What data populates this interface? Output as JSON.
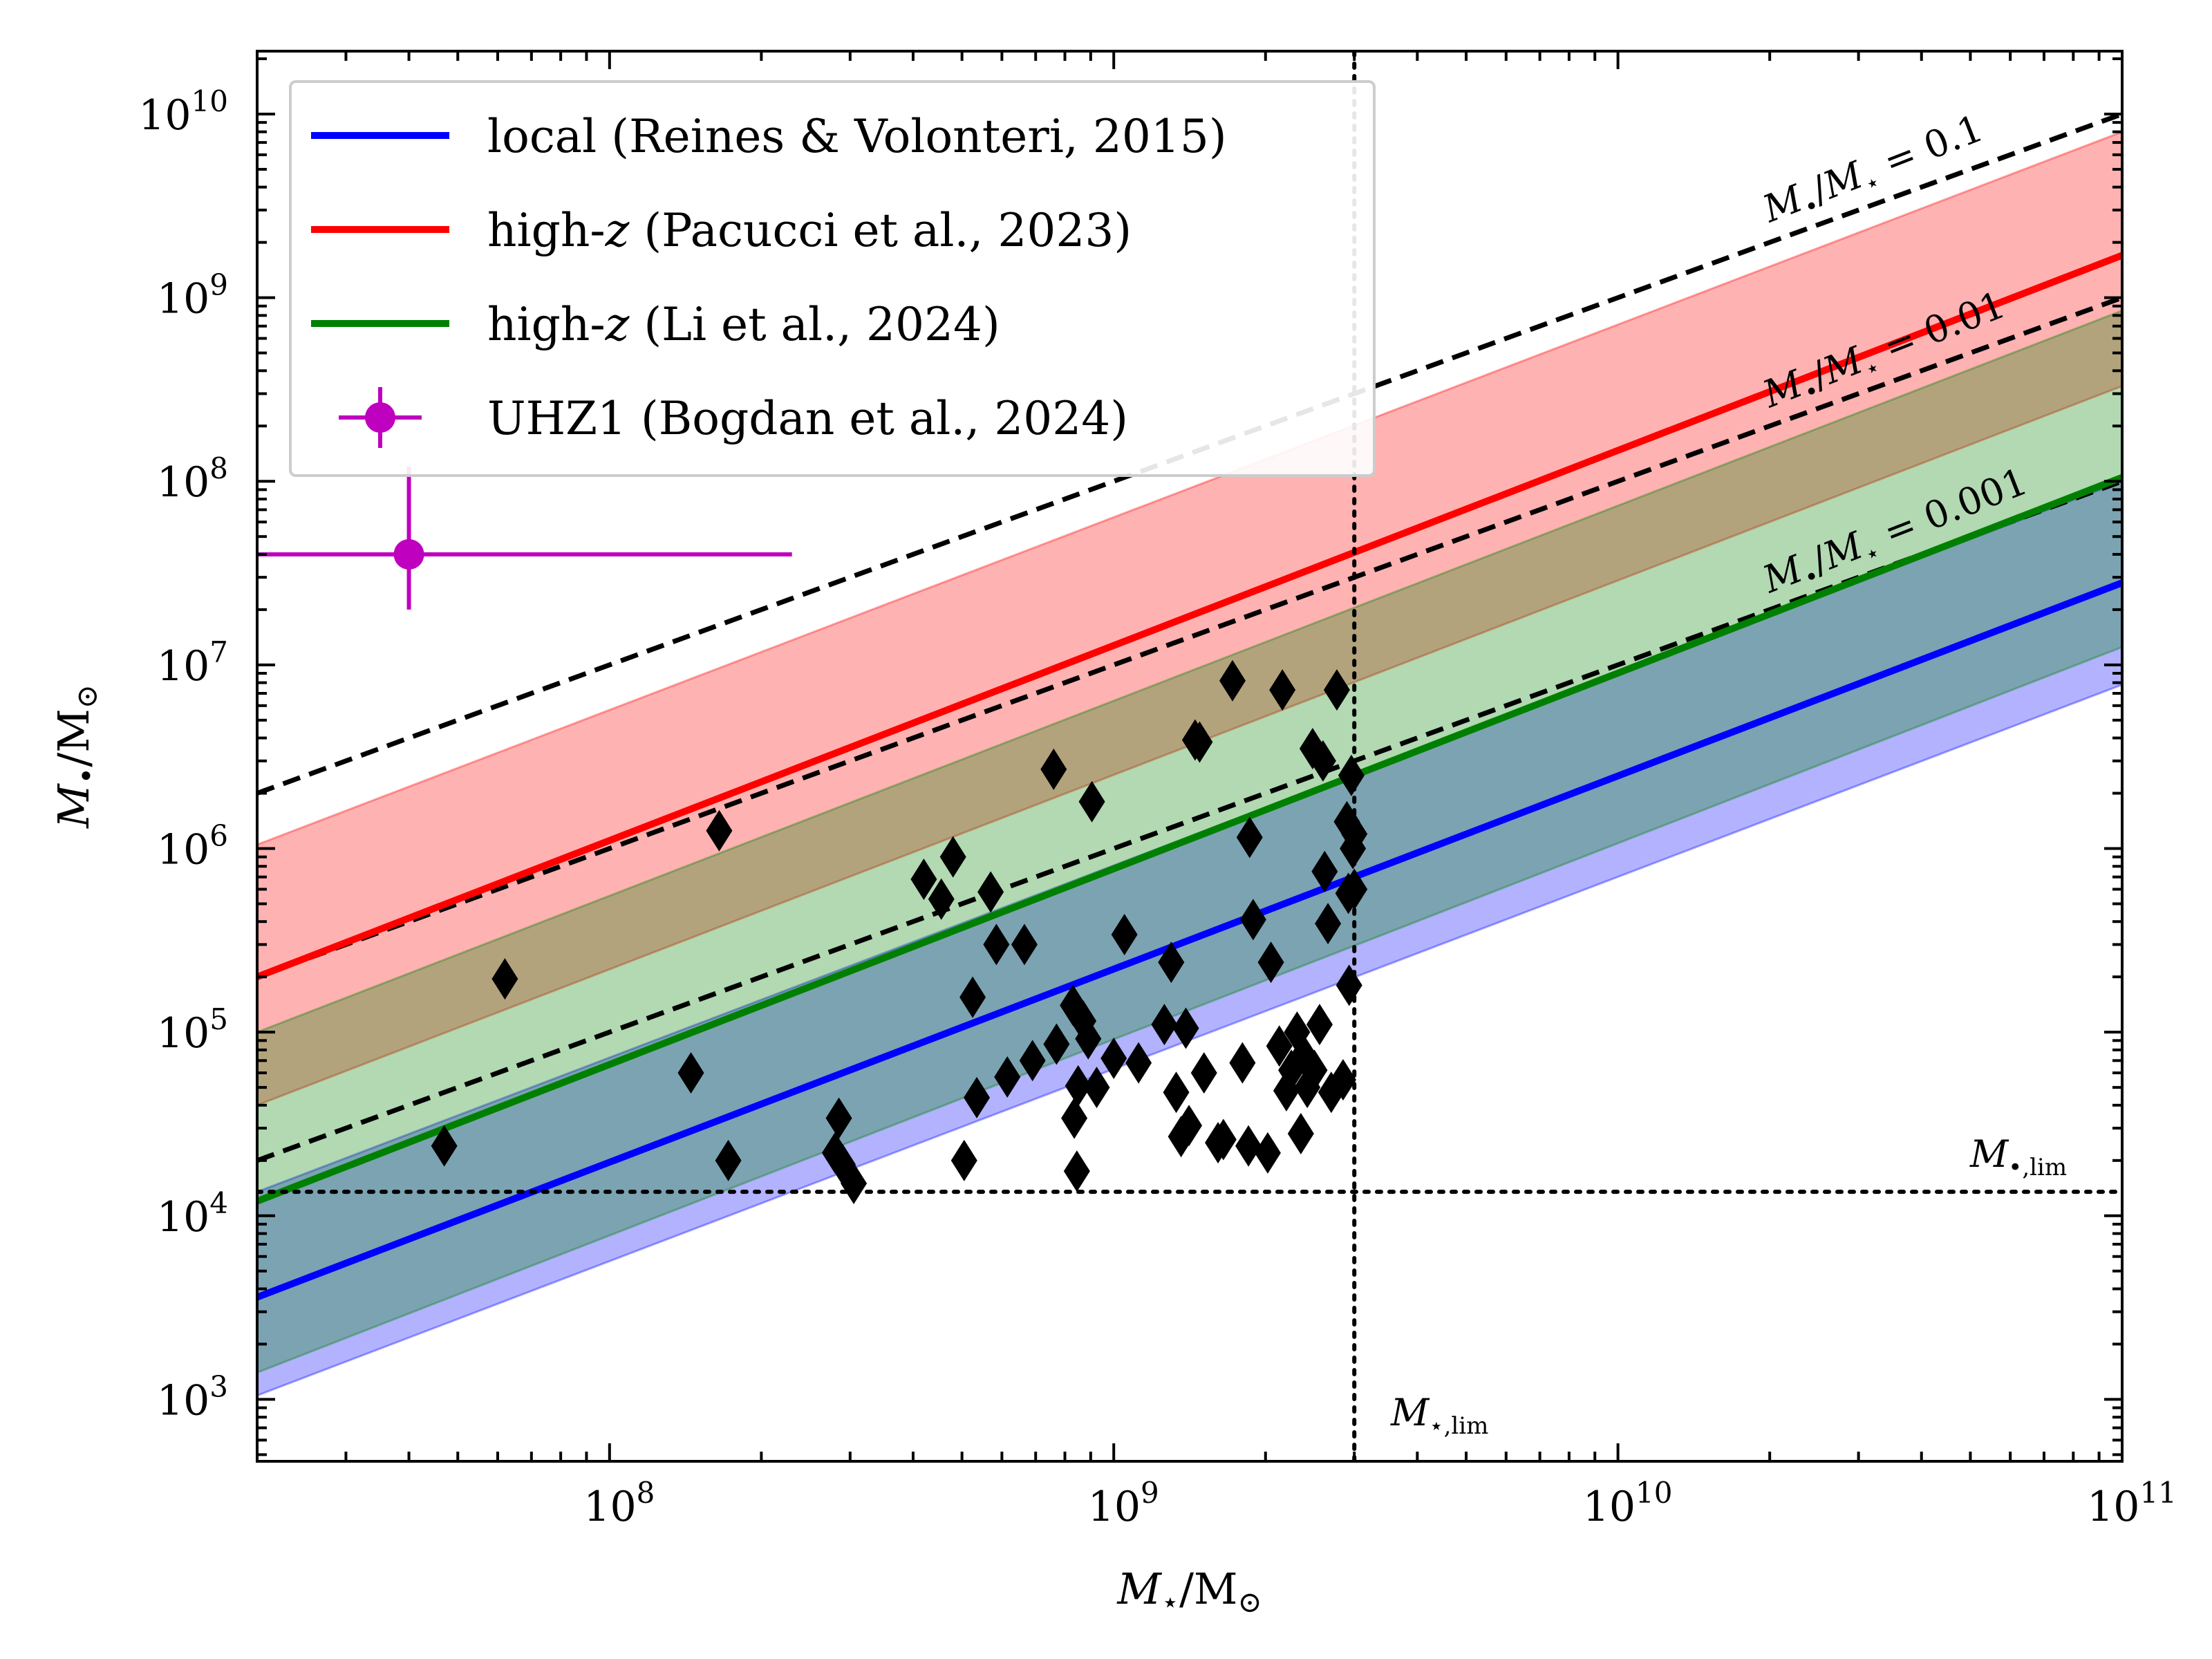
{
  "chart_data": {
    "type": "scatter",
    "xlabel": "M⋆/M⊙",
    "ylabel": "M•/M⊙",
    "xscale": "log",
    "yscale": "log",
    "xlim": [
      20000000,
      100000000000
    ],
    "ylim": [
      460,
      22000000000
    ],
    "x_ticks": [
      {
        "value": 100000000,
        "base": "10",
        "exp": "8"
      },
      {
        "value": 1000000000,
        "base": "10",
        "exp": "9"
      },
      {
        "value": 10000000000,
        "base": "10",
        "exp": "10"
      },
      {
        "value": 100000000000,
        "base": "10",
        "exp": "11"
      }
    ],
    "y_ticks": [
      {
        "value": 1000,
        "base": "10",
        "exp": "3"
      },
      {
        "value": 10000,
        "base": "10",
        "exp": "4"
      },
      {
        "value": 100000,
        "base": "10",
        "exp": "5"
      },
      {
        "value": 1000000,
        "base": "10",
        "exp": "6"
      },
      {
        "value": 10000000,
        "base": "10",
        "exp": "7"
      },
      {
        "value": 100000000,
        "base": "10",
        "exp": "8"
      },
      {
        "value": 1000000000,
        "base": "10",
        "exp": "9"
      },
      {
        "value": 10000000000,
        "base": "10",
        "exp": "10"
      }
    ],
    "relations": [
      {
        "name": "local (Reines & Volonteri, 2015)",
        "color": "#0000ff",
        "band_color": "#0000ff",
        "band_opacity": 0.3,
        "line": [
          [
            20000000,
            3600
          ],
          [
            100000000000,
            28000000
          ]
        ],
        "band_lower": [
          [
            20000000,
            1050
          ],
          [
            100000000000,
            7800000
          ]
        ],
        "band_upper": [
          [
            20000000,
            13500
          ],
          [
            100000000000,
            100000000
          ]
        ]
      },
      {
        "name": "high-z (Pacucci et al., 2023)",
        "color": "#ff0000",
        "band_color": "#ff0000",
        "band_opacity": 0.3,
        "line": [
          [
            20000000,
            200000
          ],
          [
            100000000000,
            1700000000
          ]
        ],
        "band_lower": [
          [
            20000000,
            40000
          ],
          [
            100000000000,
            330000000
          ]
        ],
        "band_upper": [
          [
            20000000,
            1050000
          ],
          [
            100000000000,
            8000000000
          ]
        ]
      },
      {
        "name": "high-z (Li et al., 2024)",
        "color": "#008000",
        "band_color": "#008000",
        "band_opacity": 0.3,
        "line": [
          [
            20000000,
            12000
          ],
          [
            100000000000,
            105000000
          ]
        ],
        "band_lower": [
          [
            20000000,
            1400
          ],
          [
            100000000000,
            12500000
          ]
        ],
        "band_upper": [
          [
            20000000,
            100000
          ],
          [
            100000000000,
            850000000
          ]
        ]
      }
    ],
    "ratio_lines": [
      {
        "ratio": 0.1,
        "label": "M•/M⋆ = 0.1"
      },
      {
        "ratio": 0.01,
        "label": "M•/M⋆ = 0.01"
      },
      {
        "ratio": 0.001,
        "label": "M•/M⋆ = 0.001"
      }
    ],
    "limits": {
      "mstar_lim": 3000000000,
      "mstar_lim_label": "M⋆,lim",
      "mbh_lim": 13500,
      "mbh_lim_label": "M•,lim"
    },
    "uhz1": {
      "name": "UHZ1 (Bogdan et al., 2024)",
      "color": "#bf00bf",
      "x": 40000000,
      "y": 40000000,
      "x_err": [
        20000000,
        230000000
      ],
      "y_err": [
        20000000,
        120000000
      ]
    },
    "points_label": "black diamonds",
    "points": [
      [
        47000000,
        24000
      ],
      [
        62000000,
        195000
      ],
      [
        145000000,
        60000
      ],
      [
        165000000,
        1250000
      ],
      [
        172000000,
        20000
      ],
      [
        280000000,
        22000
      ],
      [
        285000000,
        34000
      ],
      [
        290000000,
        19000
      ],
      [
        305000000,
        15000
      ],
      [
        420000000,
        680000
      ],
      [
        455000000,
        530000
      ],
      [
        480000000,
        900000
      ],
      [
        505000000,
        20000
      ],
      [
        525000000,
        155000
      ],
      [
        535000000,
        44000
      ],
      [
        570000000,
        580000
      ],
      [
        585000000,
        300000
      ],
      [
        615000000,
        57000
      ],
      [
        665000000,
        300000
      ],
      [
        690000000,
        70000
      ],
      [
        760000000,
        2700000
      ],
      [
        770000000,
        86000
      ],
      [
        830000000,
        140000
      ],
      [
        835000000,
        34000
      ],
      [
        845000000,
        17500
      ],
      [
        850000000,
        51000
      ],
      [
        870000000,
        115000
      ],
      [
        890000000,
        92000
      ],
      [
        905000000,
        1800000
      ],
      [
        925000000,
        50000
      ],
      [
        1000000000,
        72000
      ],
      [
        1050000000,
        340000
      ],
      [
        1120000000,
        68000
      ],
      [
        1260000000,
        110000
      ],
      [
        1300000000,
        240000
      ],
      [
        1330000000,
        47000
      ],
      [
        1360000000,
        27000
      ],
      [
        1390000000,
        105000
      ],
      [
        1410000000,
        31000
      ],
      [
        1450000000,
        3900000
      ],
      [
        1480000000,
        3800000
      ],
      [
        1510000000,
        60000
      ],
      [
        1610000000,
        25000
      ],
      [
        1650000000,
        26000
      ],
      [
        1720000000,
        8200000
      ],
      [
        1800000000,
        68000
      ],
      [
        1850000000,
        24000
      ],
      [
        1860000000,
        1150000
      ],
      [
        1890000000,
        410000
      ],
      [
        2020000000,
        22000
      ],
      [
        2050000000,
        240000
      ],
      [
        2130000000,
        84000
      ],
      [
        2160000000,
        7300000
      ],
      [
        2200000000,
        48000
      ],
      [
        2250000000,
        62000
      ],
      [
        2310000000,
        100000
      ],
      [
        2350000000,
        28000
      ],
      [
        2380000000,
        75000
      ],
      [
        2420000000,
        50000
      ],
      [
        2480000000,
        3500000
      ],
      [
        2500000000,
        62000
      ],
      [
        2560000000,
        110000
      ],
      [
        2600000000,
        3000000
      ],
      [
        2620000000,
        750000
      ],
      [
        2660000000,
        390000
      ],
      [
        2700000000,
        47000
      ],
      [
        2770000000,
        7300000
      ],
      [
        2850000000,
        55000
      ],
      [
        2900000000,
        1400000
      ],
      [
        2920000000,
        570000
      ],
      [
        2930000000,
        180000
      ],
      [
        2960000000,
        2500000
      ],
      [
        2980000000,
        1000000
      ],
      [
        3000000000,
        600000
      ],
      [
        3000000000,
        1200000
      ]
    ],
    "legend": {
      "position": "upper-left",
      "entries": [
        {
          "label": "local (Reines & Volonteri, 2015)",
          "color": "#0000ff",
          "kind": "line"
        },
        {
          "label_pre": "high-",
          "label_italic": "z",
          "label_post": " (Pacucci et al., 2023)",
          "color": "#ff0000",
          "kind": "line"
        },
        {
          "label_pre": "high-",
          "label_italic": "z",
          "label_post": " (Li et al., 2024)",
          "color": "#008000",
          "kind": "line"
        },
        {
          "label": "UHZ1 (Bogdan et al., 2024)",
          "color": "#bf00bf",
          "kind": "errorbar"
        }
      ]
    }
  }
}
